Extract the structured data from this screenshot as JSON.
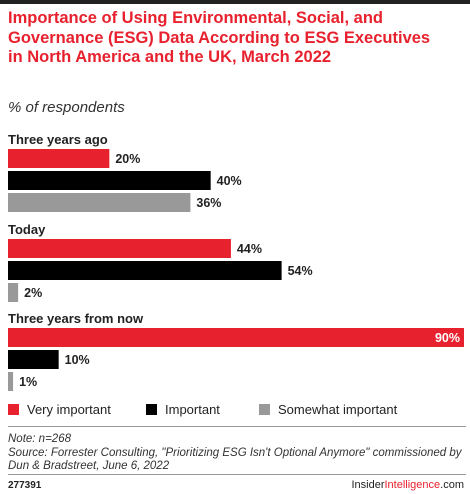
{
  "title": "Importance of Using Environmental, Social, and Governance (ESG) Data According to ESG Executives in North America and the UK, March 2022",
  "subtitle": "% of respondents",
  "chart_data": {
    "type": "bar",
    "orientation": "horizontal",
    "categories": [
      "Three years ago",
      "Today",
      "Three years from now"
    ],
    "series": [
      {
        "name": "Very important",
        "values": [
          20,
          44,
          90
        ],
        "color": "#e8212e"
      },
      {
        "name": "Important",
        "values": [
          40,
          54,
          10
        ],
        "color": "#000000"
      },
      {
        "name": "Somewhat important",
        "values": [
          36,
          2,
          1
        ],
        "color": "#999999"
      }
    ],
    "value_suffix": "%",
    "xlim": [
      0,
      90
    ],
    "legend_position": "bottom"
  },
  "note": "Note: n=268",
  "source": "Source: Forrester Consulting, \"Prioritizing ESG Isn't Optional Anymore\" commissioned by Dun & Bradstreet, June 6, 2022",
  "chart_id": "277391",
  "brand": {
    "part1": "Insider",
    "part2": "Intelligence",
    "part3": ".com"
  }
}
